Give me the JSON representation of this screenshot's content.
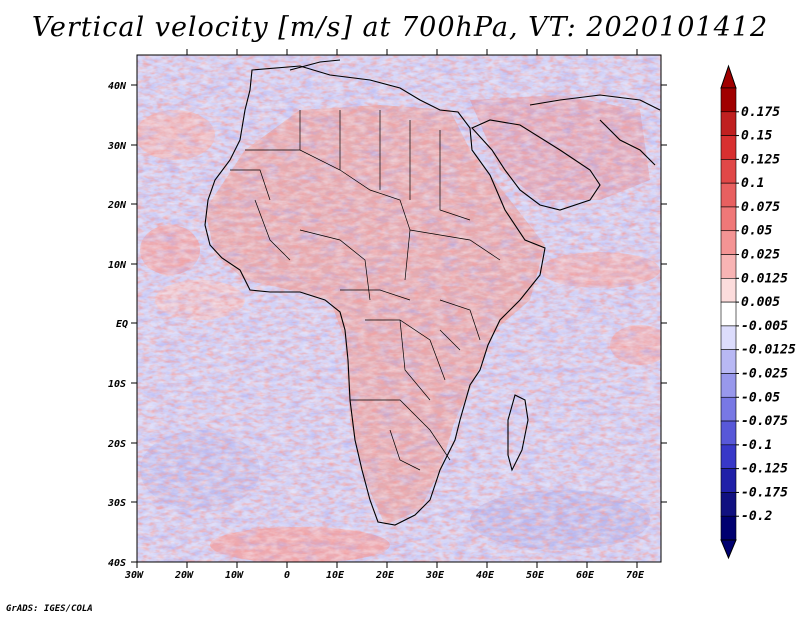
{
  "title": "Vertical velocity [m/s] at 700hPa, VT: 2020101412",
  "credit": "GrADS: IGES/COLA",
  "map": {
    "lat_labels": [
      "40N",
      "30N",
      "20N",
      "10N",
      "EQ",
      "10S",
      "20S",
      "30S",
      "40S"
    ],
    "lon_labels": [
      "30W",
      "20W",
      "10W",
      "0",
      "10E",
      "20E",
      "30E",
      "40E",
      "50E",
      "60E",
      "70E"
    ],
    "lat_range": [
      -40,
      45
    ],
    "lon_range": [
      -30,
      75
    ]
  },
  "colorbar": {
    "labels": [
      "0.175",
      "0.15",
      "0.125",
      "0.1",
      "0.075",
      "0.05",
      "0.025",
      "0.0125",
      "0.005",
      "-0.005",
      "-0.0125",
      "-0.025",
      "-0.05",
      "-0.075",
      "-0.1",
      "-0.125",
      "-0.175",
      "-0.2"
    ],
    "colors": [
      "#a00000",
      "#c02020",
      "#d83030",
      "#e04848",
      "#e86060",
      "#f07878",
      "#f49494",
      "#f8b4b4",
      "#fcdcdc",
      "#ffffff",
      "#dcdcfc",
      "#b8b8f4",
      "#9898ec",
      "#7878e4",
      "#5858d8",
      "#3838c8",
      "#2020a8",
      "#101080",
      "#000070"
    ]
  }
}
